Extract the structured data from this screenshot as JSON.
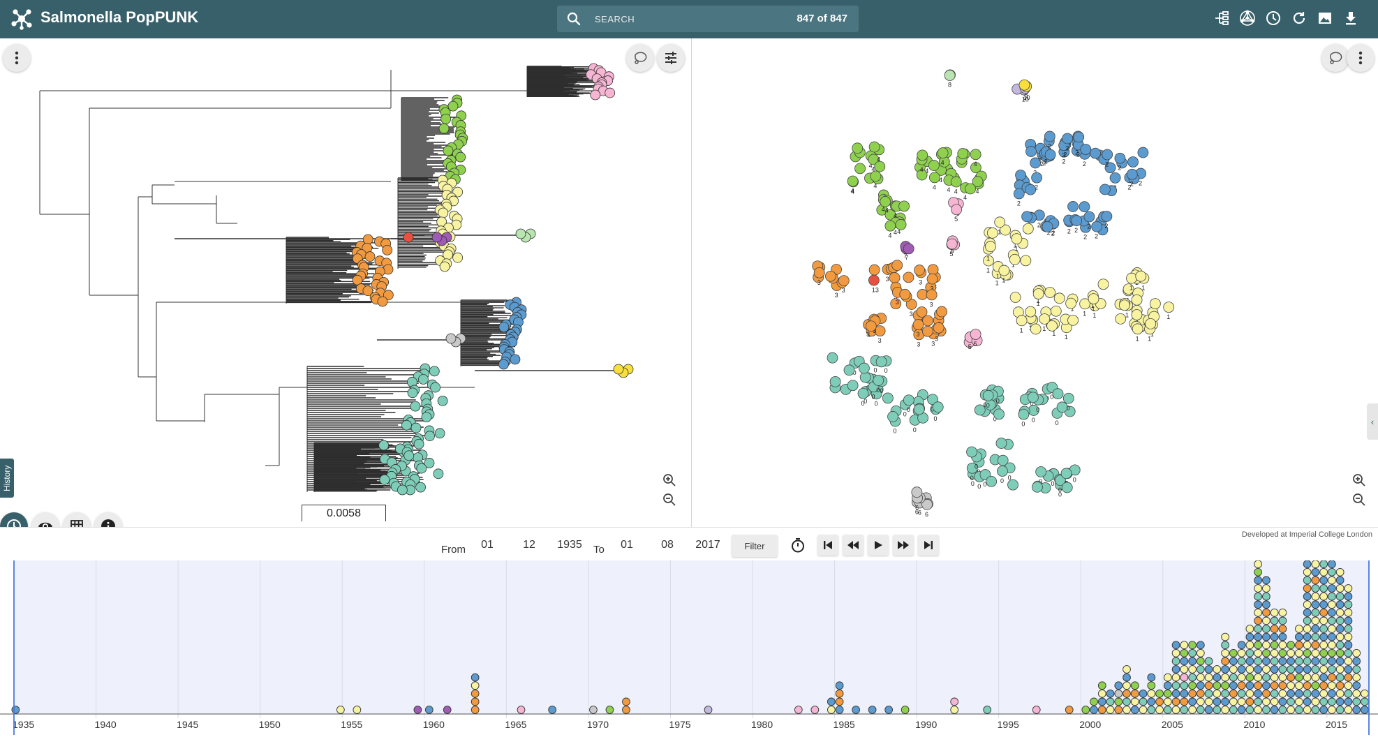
{
  "app": {
    "title": "Salmonella PopPUNK",
    "logo_icon": "microreact-logo-icon"
  },
  "search": {
    "placeholder": "SEARCH",
    "count_label": "847 of 847"
  },
  "toolbar_icons": [
    "tree-view-icon",
    "network-view-icon",
    "timeline-icon",
    "refresh-icon",
    "image-export-icon",
    "download-icon"
  ],
  "tree_panel": {
    "scale_label": "0.0058"
  },
  "history_tab_label": "History",
  "timeline_controls": {
    "from_label": "From",
    "to_label": "To",
    "from_day": "01",
    "from_month": "12",
    "from_year": "1935",
    "to_day": "01",
    "to_month": "08",
    "to_year": "2017",
    "filter_label": "Filter",
    "credit": "Developed at Imperial College London"
  },
  "colors": {
    "header": "#37606b",
    "cluster_0": "#7ecdb8",
    "cluster_1": "#f7f3a1",
    "cluster_2": "#5b9bcf",
    "cluster_3": "#f29a3f",
    "cluster_4": "#8fd14f",
    "cluster_5": "#f6b5d2",
    "cluster_6": "#c9c9c9",
    "cluster_7": "#a05bb5",
    "cluster_8": "#b9e6b0",
    "cluster_9": "#c3b8de",
    "cluster_10": "#f9df3c",
    "cluster_11": "#e8513f"
  },
  "chart_data": {
    "type": "scatter",
    "x_ticks": [
      "1935",
      "1940",
      "1945",
      "1950",
      "1955",
      "1960",
      "1965",
      "1970",
      "1975",
      "1980",
      "1985",
      "1990",
      "1995",
      "2000",
      "2005",
      "2010",
      "2015"
    ],
    "x_range": [
      1935,
      2017.6
    ],
    "y_unit": "stacked isolate count per year",
    "stacks": [
      {
        "year": 1935.1,
        "clusters": [
          2
        ]
      },
      {
        "year": 1954.9,
        "clusters": [
          1
        ]
      },
      {
        "year": 1955.9,
        "clusters": [
          1
        ]
      },
      {
        "year": 1959.6,
        "clusters": [
          7
        ]
      },
      {
        "year": 1960.3,
        "clusters": [
          2
        ]
      },
      {
        "year": 1961.4,
        "clusters": [
          7
        ]
      },
      {
        "year": 1963.1,
        "clusters": [
          3,
          3,
          3,
          1,
          2
        ]
      },
      {
        "year": 1965.9,
        "clusters": [
          5
        ]
      },
      {
        "year": 1967.8,
        "clusters": [
          2
        ]
      },
      {
        "year": 1970.3,
        "clusters": [
          6
        ]
      },
      {
        "year": 1971.3,
        "clusters": [
          4
        ]
      },
      {
        "year": 1972.3,
        "clusters": [
          3,
          3
        ]
      },
      {
        "year": 1977.3,
        "clusters": [
          9
        ]
      },
      {
        "year": 1982.8,
        "clusters": [
          5
        ]
      },
      {
        "year": 1983.8,
        "clusters": [
          5
        ]
      },
      {
        "year": 1984.8,
        "clusters": [
          1,
          2
        ]
      },
      {
        "year": 1985.3,
        "clusters": [
          2,
          3,
          3,
          2
        ]
      },
      {
        "year": 1986.3,
        "clusters": [
          2
        ]
      },
      {
        "year": 1987.3,
        "clusters": [
          2
        ]
      },
      {
        "year": 1988.3,
        "clusters": [
          2
        ]
      },
      {
        "year": 1989.3,
        "clusters": [
          4
        ]
      },
      {
        "year": 1992.3,
        "clusters": [
          1,
          5
        ]
      },
      {
        "year": 1994.3,
        "clusters": [
          0
        ]
      },
      {
        "year": 1997.3,
        "clusters": [
          5
        ]
      },
      {
        "year": 1999.3,
        "clusters": [
          3
        ]
      },
      {
        "year": 2000.3,
        "clusters": [
          4
        ]
      },
      {
        "year": 2000.8,
        "clusters": [
          2,
          4
        ]
      },
      {
        "year": 2001.3,
        "clusters": [
          3,
          2,
          1,
          4
        ]
      },
      {
        "year": 2001.8,
        "clusters": [
          1,
          0,
          2
        ]
      },
      {
        "year": 2002.3,
        "clusters": [
          3,
          4,
          6,
          2
        ]
      },
      {
        "year": 2002.8,
        "clusters": [
          1,
          0,
          3,
          1,
          2,
          1
        ]
      },
      {
        "year": 2003.3,
        "clusters": [
          2,
          1,
          3,
          4
        ]
      },
      {
        "year": 2003.8,
        "clusters": [
          1,
          0,
          2
        ]
      },
      {
        "year": 2004.3,
        "clusters": [
          0,
          2,
          1,
          4,
          2
        ]
      },
      {
        "year": 2004.8,
        "clusters": [
          1,
          3,
          4
        ]
      },
      {
        "year": 2005.3,
        "clusters": [
          0,
          1,
          4,
          2,
          1
        ]
      },
      {
        "year": 2005.8,
        "clusters": [
          1,
          3,
          2,
          0,
          1,
          2,
          0,
          1,
          2
        ]
      },
      {
        "year": 2006.3,
        "clusters": [
          0,
          3,
          2,
          0,
          5,
          1,
          2,
          4,
          1
        ]
      },
      {
        "year": 2006.8,
        "clusters": [
          1,
          2,
          3,
          4,
          0,
          1,
          2,
          0,
          4
        ]
      },
      {
        "year": 2007.3,
        "clusters": [
          0,
          1,
          3,
          2,
          1,
          0,
          4,
          1,
          2
        ]
      },
      {
        "year": 2007.8,
        "clusters": [
          2,
          1,
          0,
          3,
          1,
          2,
          0
        ]
      },
      {
        "year": 2008.3,
        "clusters": [
          0,
          2,
          1,
          4,
          2,
          1
        ]
      },
      {
        "year": 2008.8,
        "clusters": [
          1,
          2,
          0,
          4,
          1,
          2,
          3,
          1,
          0,
          1
        ]
      },
      {
        "year": 2009.3,
        "clusters": [
          0,
          1,
          3,
          2,
          0,
          1,
          2,
          4
        ]
      },
      {
        "year": 2009.8,
        "clusters": [
          2,
          1,
          0,
          3,
          1,
          2,
          0,
          1,
          2
        ]
      },
      {
        "year": 2010.3,
        "clusters": [
          0,
          3,
          1,
          2,
          4,
          1,
          2,
          0,
          1,
          2,
          1
        ]
      },
      {
        "year": 2010.8,
        "clusters": [
          1,
          0,
          2,
          3,
          1,
          2,
          0,
          1,
          4,
          2,
          0,
          3,
          1,
          2,
          0,
          1,
          2,
          4,
          1,
          0
        ]
      },
      {
        "year": 2011.3,
        "clusters": [
          0,
          1,
          3,
          2,
          0,
          1,
          2,
          4,
          1,
          2,
          0,
          1,
          3,
          2,
          0,
          1,
          2
        ]
      },
      {
        "year": 2011.8,
        "clusters": [
          2,
          1,
          0,
          3,
          1,
          2,
          0,
          1,
          4,
          2,
          3,
          0,
          1
        ]
      },
      {
        "year": 2012.3,
        "clusters": [
          0,
          2,
          1,
          3,
          1,
          0,
          2,
          4,
          1,
          2,
          3,
          0,
          1
        ]
      },
      {
        "year": 2012.8,
        "clusters": [
          1,
          0,
          2,
          1,
          3,
          0,
          2,
          1,
          4
        ]
      },
      {
        "year": 2013.3,
        "clusters": [
          0,
          1,
          2,
          1,
          4,
          2,
          0,
          1,
          3,
          2,
          1
        ]
      },
      {
        "year": 2013.8,
        "clusters": [
          1,
          2,
          0,
          3,
          1,
          2,
          0,
          4,
          1,
          2,
          1,
          0,
          2,
          1,
          2,
          3,
          0,
          1,
          2,
          0,
          3
        ]
      },
      {
        "year": 2014.3,
        "clusters": [
          0,
          1,
          2,
          4,
          1,
          0,
          2,
          1,
          3,
          0,
          2,
          1,
          0,
          2,
          1,
          0,
          3,
          2,
          1,
          0,
          3
        ]
      },
      {
        "year": 2014.8,
        "clusters": [
          2,
          0,
          1,
          3,
          2,
          1,
          0,
          4,
          1,
          2,
          0,
          1,
          3,
          2,
          1,
          0,
          2,
          1,
          0,
          3
        ]
      },
      {
        "year": 2015.3,
        "clusters": [
          1,
          0,
          2,
          1,
          3,
          0,
          2,
          4,
          1,
          2,
          1,
          0,
          2,
          1,
          0,
          2,
          1,
          0,
          2,
          1,
          3
        ]
      },
      {
        "year": 2015.8,
        "clusters": [
          0,
          2,
          1,
          3,
          0,
          1,
          2,
          4,
          0,
          1,
          2,
          0,
          1,
          2,
          0,
          1,
          2,
          1
        ]
      },
      {
        "year": 2016.3,
        "clusters": [
          1,
          2,
          0,
          1,
          3,
          2,
          1,
          0,
          2,
          1,
          0,
          2,
          1,
          0,
          2,
          1
        ]
      },
      {
        "year": 2016.8,
        "clusters": [
          2,
          0,
          1,
          2,
          1,
          0,
          2,
          1
        ]
      },
      {
        "year": 2017.3,
        "clusters": [
          2,
          0,
          1
        ]
      }
    ]
  }
}
